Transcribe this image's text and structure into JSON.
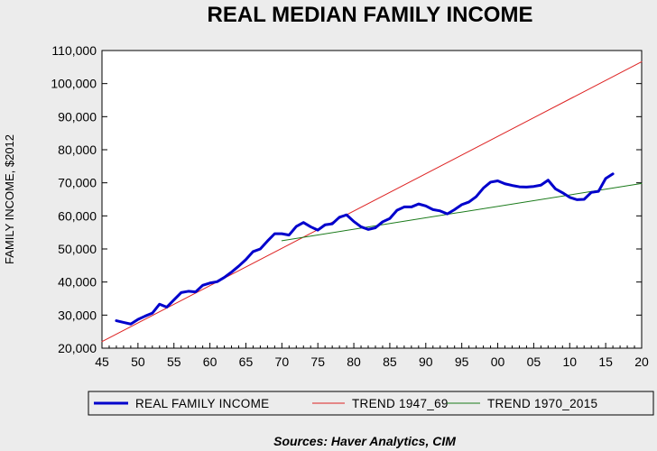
{
  "chart_data": {
    "type": "line",
    "title": "REAL MEDIAN FAMILY INCOME",
    "ylabel": "FAMILY INCOME, $2012",
    "xlabel": "",
    "xlim": [
      1945,
      2020
    ],
    "ylim": [
      20000,
      110000
    ],
    "x_ticks": [
      {
        "value": 1945,
        "label": "45"
      },
      {
        "value": 1950,
        "label": "50"
      },
      {
        "value": 1955,
        "label": "55"
      },
      {
        "value": 1960,
        "label": "60"
      },
      {
        "value": 1965,
        "label": "65"
      },
      {
        "value": 1970,
        "label": "70"
      },
      {
        "value": 1975,
        "label": "75"
      },
      {
        "value": 1980,
        "label": "80"
      },
      {
        "value": 1985,
        "label": "85"
      },
      {
        "value": 1990,
        "label": "90"
      },
      {
        "value": 1995,
        "label": "95"
      },
      {
        "value": 2000,
        "label": "00"
      },
      {
        "value": 2005,
        "label": "05"
      },
      {
        "value": 2010,
        "label": "10"
      },
      {
        "value": 2015,
        "label": "15"
      },
      {
        "value": 2020,
        "label": "20"
      }
    ],
    "y_ticks": [
      {
        "value": 20000,
        "label": "20,000"
      },
      {
        "value": 30000,
        "label": "30,000"
      },
      {
        "value": 40000,
        "label": "40,000"
      },
      {
        "value": 50000,
        "label": "50,000"
      },
      {
        "value": 60000,
        "label": "60,000"
      },
      {
        "value": 70000,
        "label": "70,000"
      },
      {
        "value": 80000,
        "label": "80,000"
      },
      {
        "value": 90000,
        "label": "90,000"
      },
      {
        "value": 100000,
        "label": "100,000"
      },
      {
        "value": 110000,
        "label": "110,000"
      }
    ],
    "grid": false,
    "legend": "bottom",
    "series": [
      {
        "name": "REAL FAMILY INCOME",
        "color": "#0000cc",
        "x": [
          1947,
          1948,
          1949,
          1950,
          1951,
          1952,
          1953,
          1954,
          1955,
          1956,
          1957,
          1958,
          1959,
          1960,
          1961,
          1962,
          1963,
          1964,
          1965,
          1966,
          1967,
          1968,
          1969,
          1970,
          1971,
          1972,
          1973,
          1974,
          1975,
          1976,
          1977,
          1978,
          1979,
          1980,
          1981,
          1982,
          1983,
          1984,
          1985,
          1986,
          1987,
          1988,
          1989,
          1990,
          1991,
          1992,
          1993,
          1994,
          1995,
          1996,
          1997,
          1998,
          1999,
          2000,
          2001,
          2002,
          2003,
          2004,
          2005,
          2006,
          2007,
          2008,
          2009,
          2010,
          2011,
          2012,
          2013,
          2014,
          2015,
          2016
        ],
        "values": [
          28300,
          27800,
          27300,
          28700,
          29700,
          30600,
          33300,
          32400,
          34600,
          36800,
          37200,
          37000,
          39000,
          39700,
          40100,
          41400,
          43000,
          44800,
          46800,
          49200,
          50000,
          52400,
          54600,
          54600,
          54200,
          56800,
          58000,
          56700,
          55700,
          57300,
          57600,
          59600,
          60300,
          58300,
          56700,
          55900,
          56400,
          58200,
          59200,
          61700,
          62700,
          62700,
          63600,
          63000,
          61900,
          61500,
          60600,
          61900,
          63400,
          64200,
          65800,
          68400,
          70200,
          70600,
          69700,
          69200,
          68800,
          68700,
          68900,
          69300,
          70800,
          68200,
          67000,
          65600,
          64900,
          65000,
          67100,
          67400,
          71300,
          72700
        ]
      },
      {
        "name": "TREND 1947_69",
        "color": "#dd2222",
        "x": [
          1945,
          2020
        ],
        "values": [
          22000,
          106600
        ]
      },
      {
        "name": "TREND 1970_2015",
        "color": "#1a7a1a",
        "x": [
          1970,
          2020
        ],
        "values": [
          52500,
          69800
        ]
      }
    ],
    "source": "Sources:  Haver Analytics, CIM"
  }
}
